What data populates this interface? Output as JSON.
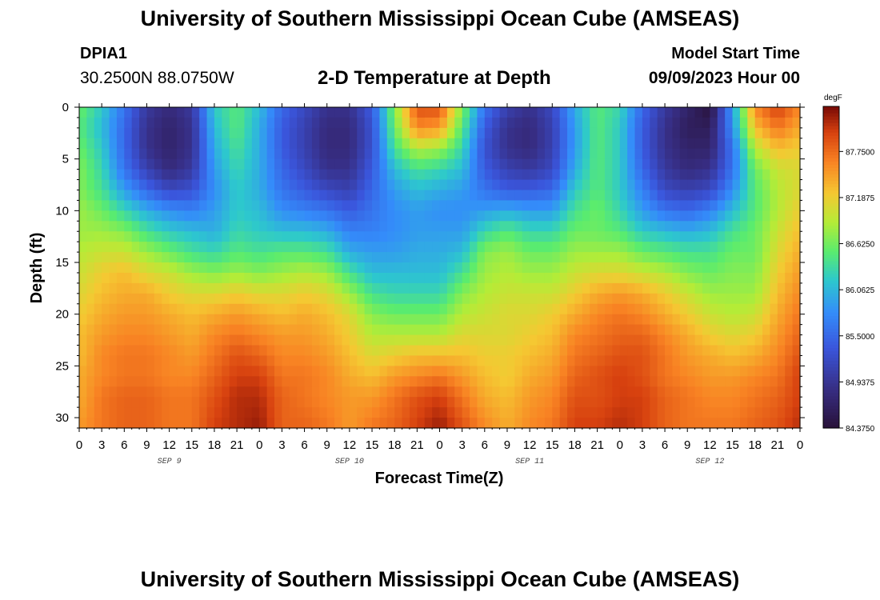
{
  "header": {
    "title": "University of Southern Mississippi Ocean Cube (AMSEAS)",
    "station_id": "DPIA1",
    "coordinates": "30.2500N  88.0750W",
    "subtitle": "2-D Temperature at Depth",
    "start_label": "Model Start Time",
    "start_value": "09/09/2023 Hour 00"
  },
  "footer": {
    "title": "University of Southern Mississippi Ocean Cube (AMSEAS)"
  },
  "chart_data": {
    "type": "heatmap",
    "title": "2-D Temperature at Depth",
    "xlabel": "Forecast Time(Z)",
    "ylabel": "Depth (ft)",
    "units": "degF",
    "x_range_hours": [
      0,
      96
    ],
    "x_ticks": [
      "0",
      "3",
      "6",
      "9",
      "12",
      "15",
      "18",
      "21",
      "0",
      "3",
      "6",
      "9",
      "12",
      "15",
      "18",
      "21",
      "0",
      "3",
      "6",
      "9",
      "12",
      "15",
      "18",
      "21",
      "0",
      "3",
      "6",
      "9",
      "12",
      "15",
      "18",
      "21",
      "0"
    ],
    "date_labels": [
      "SEP 9",
      "SEP 10",
      "SEP 11",
      "SEP 12"
    ],
    "y_range_ft": [
      0,
      31
    ],
    "y_ticks": [
      0,
      5,
      10,
      15,
      20,
      25,
      30
    ],
    "color_range": [
      84.375,
      88.3
    ],
    "colorbar_ticks": [
      "87.7500",
      "87.1875",
      "86.6250",
      "86.0625",
      "85.5000",
      "84.9375",
      "84.3750"
    ],
    "colorbar_values": [
      87.75,
      87.1875,
      86.625,
      86.0625,
      85.5,
      84.9375,
      84.375
    ],
    "grid_hours": [
      0,
      3,
      6,
      9,
      12,
      15,
      18,
      21,
      24,
      27,
      30,
      33,
      36,
      39,
      42,
      45,
      48,
      51,
      54,
      57,
      60,
      63,
      66,
      69,
      72,
      75,
      78,
      81,
      84,
      87,
      90,
      93,
      96
    ],
    "grid_depths_ft": [
      0,
      2,
      4,
      6,
      8,
      10,
      12,
      14,
      16,
      18,
      20,
      22,
      24,
      26,
      28,
      31
    ],
    "values_degF": [
      [
        86.6,
        86.5,
        86.6,
        86.7,
        86.7,
        86.8,
        86.8,
        86.9,
        87.0,
        87.1,
        87.2,
        87.3,
        87.3,
        87.4,
        87.4,
        87.5
      ],
      [
        86.2,
        86.1,
        86.2,
        86.3,
        86.4,
        86.6,
        86.8,
        87.0,
        87.2,
        87.3,
        87.4,
        87.5,
        87.6,
        87.6,
        87.7,
        87.7
      ],
      [
        85.6,
        85.5,
        85.5,
        85.6,
        85.9,
        86.3,
        86.7,
        87.0,
        87.3,
        87.4,
        87.5,
        87.6,
        87.7,
        87.7,
        87.8,
        87.8
      ],
      [
        85.0,
        84.9,
        84.9,
        85.1,
        85.5,
        86.0,
        86.4,
        86.8,
        87.1,
        87.4,
        87.5,
        87.6,
        87.7,
        87.7,
        87.8,
        87.8
      ],
      [
        84.8,
        84.7,
        84.7,
        84.8,
        85.2,
        85.8,
        86.2,
        86.6,
        87.0,
        87.2,
        87.4,
        87.5,
        87.6,
        87.6,
        87.7,
        87.7
      ],
      [
        85.0,
        84.9,
        84.9,
        85.0,
        85.3,
        85.7,
        86.1,
        86.4,
        86.8,
        87.1,
        87.3,
        87.4,
        87.5,
        87.6,
        87.7,
        87.7
      ],
      [
        86.2,
        86.1,
        86.0,
        85.9,
        85.8,
        85.9,
        86.0,
        86.3,
        86.7,
        87.1,
        87.4,
        87.6,
        87.7,
        87.8,
        87.9,
        88.0
      ],
      [
        86.5,
        86.5,
        86.4,
        86.3,
        86.2,
        86.2,
        86.3,
        86.5,
        86.8,
        87.2,
        87.5,
        87.7,
        87.9,
        88.0,
        88.1,
        88.1
      ],
      [
        86.1,
        86.0,
        86.0,
        86.0,
        86.0,
        86.1,
        86.2,
        86.4,
        86.7,
        87.1,
        87.4,
        87.6,
        87.8,
        88.0,
        88.1,
        88.2
      ],
      [
        85.5,
        85.4,
        85.4,
        85.5,
        85.6,
        85.8,
        86.1,
        86.5,
        86.8,
        87.1,
        87.3,
        87.5,
        87.6,
        87.7,
        87.8,
        87.8
      ],
      [
        85.2,
        85.1,
        85.1,
        85.2,
        85.4,
        85.7,
        86.1,
        86.5,
        86.9,
        87.2,
        87.4,
        87.5,
        87.6,
        87.7,
        87.7,
        87.8
      ],
      [
        84.9,
        84.8,
        84.8,
        84.9,
        85.2,
        85.6,
        86.0,
        86.4,
        86.8,
        87.1,
        87.3,
        87.4,
        87.5,
        87.6,
        87.6,
        87.7
      ],
      [
        84.9,
        84.8,
        84.8,
        84.9,
        85.1,
        85.4,
        85.7,
        86.0,
        86.4,
        86.8,
        87.1,
        87.2,
        87.3,
        87.4,
        87.5,
        87.5
      ],
      [
        85.4,
        85.3,
        85.3,
        85.4,
        85.5,
        85.6,
        85.7,
        85.9,
        86.1,
        86.4,
        86.7,
        86.9,
        87.1,
        87.3,
        87.5,
        87.7
      ],
      [
        86.7,
        86.6,
        86.4,
        86.1,
        85.9,
        85.8,
        85.8,
        85.9,
        86.1,
        86.3,
        86.6,
        86.9,
        87.2,
        87.5,
        87.7,
        87.8
      ],
      [
        87.9,
        87.6,
        86.9,
        86.4,
        86.1,
        85.9,
        85.9,
        86.0,
        86.1,
        86.3,
        86.6,
        86.9,
        87.3,
        87.6,
        87.9,
        88.0
      ],
      [
        87.9,
        87.5,
        86.8,
        86.3,
        86.0,
        85.8,
        85.9,
        86.0,
        86.1,
        86.3,
        86.6,
        86.9,
        87.3,
        87.7,
        88.0,
        88.2
      ],
      [
        86.7,
        86.5,
        86.3,
        86.1,
        85.9,
        85.8,
        85.9,
        86.1,
        86.4,
        86.7,
        86.9,
        87.1,
        87.3,
        87.5,
        87.7,
        87.9
      ],
      [
        85.6,
        85.4,
        85.3,
        85.4,
        85.6,
        85.9,
        86.3,
        86.7,
        86.8,
        86.9,
        87.0,
        87.1,
        87.2,
        87.3,
        87.4,
        87.6
      ],
      [
        85.1,
        84.9,
        84.9,
        85.1,
        85.4,
        86.0,
        86.5,
        86.8,
        86.9,
        87.0,
        87.1,
        87.1,
        87.2,
        87.2,
        87.3,
        87.4
      ],
      [
        84.9,
        84.8,
        84.8,
        85.0,
        85.4,
        85.9,
        86.3,
        86.6,
        86.8,
        87.0,
        87.1,
        87.2,
        87.3,
        87.4,
        87.5,
        87.6
      ],
      [
        85.2,
        85.1,
        85.1,
        85.2,
        85.5,
        85.9,
        86.3,
        86.6,
        86.8,
        87.0,
        87.2,
        87.3,
        87.4,
        87.5,
        87.6,
        87.7
      ],
      [
        86.0,
        85.9,
        85.9,
        86.0,
        86.2,
        86.4,
        86.6,
        86.8,
        87.0,
        87.2,
        87.4,
        87.6,
        87.7,
        87.8,
        87.9,
        88.0
      ],
      [
        86.5,
        86.5,
        86.5,
        86.5,
        86.5,
        86.6,
        86.6,
        86.8,
        87.1,
        87.4,
        87.6,
        87.7,
        87.8,
        87.9,
        87.9,
        88.0
      ],
      [
        86.3,
        86.2,
        86.2,
        86.2,
        86.2,
        86.3,
        86.5,
        86.8,
        87.1,
        87.5,
        87.7,
        87.8,
        87.9,
        88.0,
        88.0,
        88.1
      ],
      [
        85.5,
        85.4,
        85.4,
        85.5,
        85.7,
        85.9,
        86.2,
        86.6,
        87.0,
        87.4,
        87.6,
        87.8,
        87.9,
        87.9,
        88.0,
        88.0
      ],
      [
        85.0,
        84.9,
        84.9,
        85.0,
        85.2,
        85.6,
        86.1,
        86.5,
        86.9,
        87.2,
        87.4,
        87.6,
        87.7,
        87.7,
        87.8,
        87.8
      ],
      [
        84.7,
        84.6,
        84.7,
        84.8,
        85.1,
        85.5,
        86.0,
        86.4,
        86.7,
        87.0,
        87.2,
        87.4,
        87.5,
        87.6,
        87.7,
        87.7
      ],
      [
        84.4,
        84.6,
        84.7,
        84.9,
        85.2,
        85.7,
        86.1,
        86.4,
        86.6,
        86.8,
        87.0,
        87.2,
        87.4,
        87.5,
        87.6,
        87.7
      ],
      [
        85.9,
        85.8,
        85.6,
        85.6,
        85.8,
        86.1,
        86.4,
        86.6,
        86.7,
        86.8,
        86.9,
        87.1,
        87.3,
        87.5,
        87.6,
        87.7
      ],
      [
        87.6,
        87.3,
        86.9,
        86.6,
        86.5,
        86.5,
        86.6,
        86.6,
        86.7,
        86.8,
        87.0,
        87.2,
        87.4,
        87.6,
        87.7,
        87.8
      ],
      [
        88.0,
        87.7,
        87.3,
        87.0,
        86.9,
        86.9,
        87.0,
        87.1,
        87.2,
        87.3,
        87.4,
        87.5,
        87.6,
        87.7,
        87.8,
        87.9
      ],
      [
        87.6,
        87.4,
        87.2,
        87.1,
        87.1,
        87.2,
        87.3,
        87.4,
        87.5,
        87.6,
        87.7,
        87.8,
        87.9,
        88.0,
        88.0,
        88.1
      ]
    ]
  }
}
